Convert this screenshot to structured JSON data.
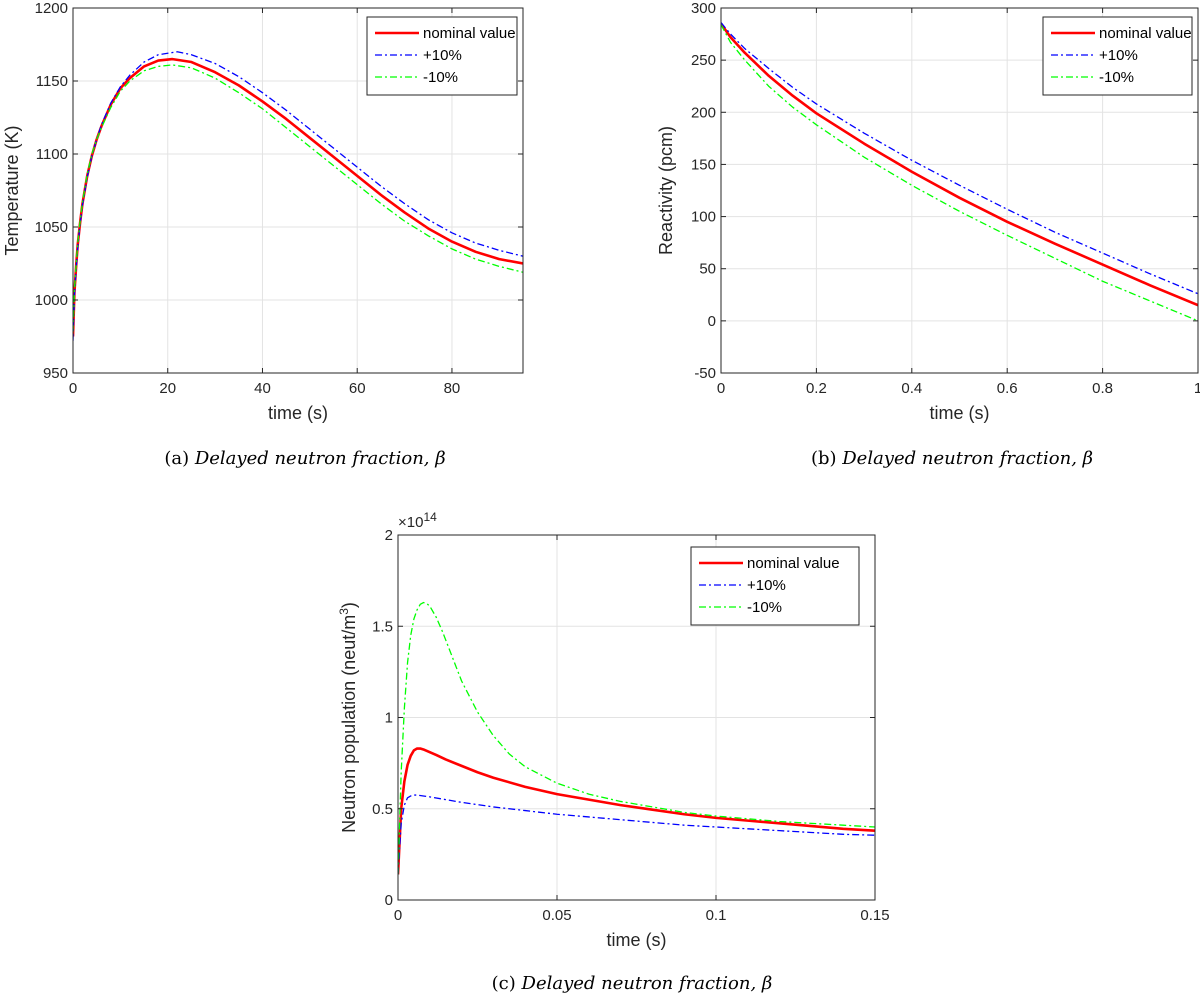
{
  "colors": {
    "nominal": "#ff0000",
    "plus10": "#0000ff",
    "minus10": "#00ff00",
    "axis": "#262626",
    "grid": "#e3e3e3"
  },
  "chart_data": [
    {
      "id": "a",
      "type": "line",
      "xlabel": "time (s)",
      "ylabel": "Temperature (K)",
      "xlim": [
        0,
        95
      ],
      "ylim": [
        950,
        1200
      ],
      "xticks": [
        0,
        20,
        40,
        60,
        80
      ],
      "xtick_labels": [
        "0",
        "20",
        "40",
        "60",
        "80"
      ],
      "yticks": [
        950,
        1000,
        1050,
        1100,
        1150,
        1200
      ],
      "ytick_labels": [
        "950",
        "1000",
        "1050",
        "1100",
        "1150",
        "1200"
      ],
      "grid": true,
      "legend_position": "top-right",
      "caption_label": "(a)",
      "caption_text": "Delayed neutron fraction, β",
      "series": [
        {
          "name": "nominal value",
          "style": "solid",
          "color_key": "nominal",
          "x": [
            0,
            0.3,
            0.7,
            1,
            1.5,
            2,
            3,
            4,
            5,
            6,
            8,
            10,
            12,
            15,
            18,
            21,
            25,
            30,
            35,
            40,
            45,
            50,
            55,
            60,
            65,
            70,
            75,
            80,
            85,
            90,
            95
          ],
          "y": [
            975,
            1005,
            1025,
            1038,
            1053,
            1066,
            1085,
            1099,
            1110,
            1119,
            1134,
            1145,
            1152,
            1160,
            1164,
            1165,
            1163,
            1156,
            1147,
            1136,
            1124,
            1111,
            1098,
            1085,
            1072,
            1060,
            1049,
            1040,
            1033,
            1028,
            1025
          ]
        },
        {
          "name": "+10%",
          "style": "dashdot",
          "color_key": "plus10",
          "x": [
            0,
            0.3,
            0.7,
            1,
            1.5,
            2,
            3,
            4,
            5,
            6,
            8,
            10,
            12,
            15,
            18,
            22,
            25,
            30,
            35,
            40,
            45,
            50,
            55,
            60,
            65,
            70,
            75,
            80,
            85,
            90,
            95
          ],
          "y": [
            972,
            1003,
            1023,
            1036,
            1052,
            1065,
            1084,
            1099,
            1110,
            1120,
            1135,
            1146,
            1154,
            1163,
            1168,
            1170,
            1168,
            1162,
            1153,
            1142,
            1130,
            1117,
            1104,
            1091,
            1078,
            1066,
            1055,
            1046,
            1039,
            1034,
            1030
          ]
        },
        {
          "name": "-10%",
          "style": "dashdot",
          "color_key": "minus10",
          "x": [
            0,
            0.3,
            0.7,
            1,
            1.5,
            2,
            3,
            4,
            5,
            6,
            8,
            10,
            12,
            15,
            18,
            21,
            25,
            30,
            35,
            40,
            45,
            50,
            55,
            60,
            65,
            70,
            75,
            80,
            85,
            90,
            95
          ],
          "y": [
            978,
            1007,
            1026,
            1039,
            1054,
            1067,
            1086,
            1100,
            1110,
            1118,
            1132,
            1143,
            1150,
            1157,
            1160,
            1161,
            1159,
            1152,
            1142,
            1131,
            1118,
            1105,
            1092,
            1079,
            1066,
            1054,
            1044,
            1035,
            1028,
            1023,
            1019
          ]
        }
      ]
    },
    {
      "id": "b",
      "type": "line",
      "xlabel": "time (s)",
      "ylabel": "Reactivity (pcm)",
      "xlim": [
        0,
        1
      ],
      "ylim": [
        -50,
        300
      ],
      "xticks": [
        0,
        0.2,
        0.4,
        0.6,
        0.8,
        1
      ],
      "xtick_labels": [
        "0",
        "0.2",
        "0.4",
        "0.6",
        "0.8",
        "1"
      ],
      "yticks": [
        -50,
        0,
        50,
        100,
        150,
        200,
        250,
        300
      ],
      "ytick_labels": [
        "-50",
        "0",
        "50",
        "100",
        "150",
        "200",
        "250",
        "300"
      ],
      "grid": true,
      "legend_position": "top-right",
      "caption_label": "(b)",
      "caption_text": "Delayed neutron fraction, β",
      "series": [
        {
          "name": "nominal value",
          "style": "solid",
          "color_key": "nominal",
          "x": [
            0,
            0.02,
            0.05,
            0.1,
            0.15,
            0.2,
            0.3,
            0.4,
            0.5,
            0.6,
            0.7,
            0.8,
            0.9,
            1.0
          ],
          "y": [
            285,
            272,
            257,
            235,
            216,
            199,
            170,
            143,
            118,
            95,
            74,
            54,
            34,
            15
          ]
        },
        {
          "name": "+10%",
          "style": "dashdot",
          "color_key": "plus10",
          "x": [
            0,
            0.02,
            0.05,
            0.1,
            0.15,
            0.2,
            0.3,
            0.4,
            0.5,
            0.6,
            0.7,
            0.8,
            0.9,
            1.0
          ],
          "y": [
            286,
            275,
            261,
            242,
            224,
            208,
            180,
            154,
            130,
            107,
            85,
            65,
            45,
            26
          ]
        },
        {
          "name": "-10%",
          "style": "dashdot",
          "color_key": "minus10",
          "x": [
            0,
            0.02,
            0.05,
            0.1,
            0.15,
            0.2,
            0.3,
            0.4,
            0.5,
            0.6,
            0.7,
            0.8,
            0.9,
            1.0
          ],
          "y": [
            284,
            267,
            250,
            225,
            205,
            188,
            157,
            130,
            105,
            82,
            60,
            38,
            19,
            0
          ]
        }
      ]
    },
    {
      "id": "c",
      "type": "line",
      "xlabel": "time (s)",
      "ylabel": "Neutron population (neut/m³)",
      "ylabel_main": "Neutron population (neut/m",
      "ylabel_sup": "3",
      "ylabel_end": ")",
      "exponent_base": "×10",
      "exponent_power": "14",
      "xlim": [
        0,
        0.15
      ],
      "ylim": [
        0,
        2
      ],
      "xticks": [
        0,
        0.05,
        0.1,
        0.15
      ],
      "xtick_labels": [
        "0",
        "0.05",
        "0.1",
        "0.15"
      ],
      "yticks": [
        0,
        0.5,
        1,
        1.5,
        2
      ],
      "ytick_labels": [
        "0",
        "0.5",
        "1",
        "1.5",
        "2"
      ],
      "grid": true,
      "legend_position": "top-right",
      "caption_label": "(c)",
      "caption_text": "Delayed neutron fraction, β",
      "series": [
        {
          "name": "nominal value",
          "style": "solid",
          "color_key": "nominal",
          "x": [
            0,
            0.001,
            0.002,
            0.003,
            0.004,
            0.005,
            0.006,
            0.007,
            0.008,
            0.01,
            0.012,
            0.015,
            0.02,
            0.025,
            0.03,
            0.04,
            0.05,
            0.06,
            0.07,
            0.08,
            0.09,
            0.1,
            0.11,
            0.12,
            0.13,
            0.14,
            0.15
          ],
          "y": [
            0.14,
            0.5,
            0.65,
            0.74,
            0.79,
            0.82,
            0.83,
            0.83,
            0.825,
            0.81,
            0.795,
            0.77,
            0.735,
            0.7,
            0.67,
            0.62,
            0.58,
            0.55,
            0.52,
            0.495,
            0.47,
            0.45,
            0.435,
            0.42,
            0.405,
            0.39,
            0.38
          ]
        },
        {
          "name": "+10%",
          "style": "dashdot",
          "color_key": "plus10",
          "x": [
            0,
            0.001,
            0.002,
            0.003,
            0.004,
            0.005,
            0.006,
            0.008,
            0.01,
            0.015,
            0.02,
            0.03,
            0.04,
            0.05,
            0.06,
            0.07,
            0.08,
            0.09,
            0.1,
            0.11,
            0.12,
            0.13,
            0.14,
            0.15
          ],
          "y": [
            0.14,
            0.42,
            0.52,
            0.56,
            0.57,
            0.575,
            0.575,
            0.57,
            0.565,
            0.55,
            0.535,
            0.51,
            0.49,
            0.47,
            0.455,
            0.44,
            0.425,
            0.41,
            0.4,
            0.39,
            0.38,
            0.37,
            0.36,
            0.355
          ]
        },
        {
          "name": "-10%",
          "style": "dashdot",
          "color_key": "minus10",
          "x": [
            0,
            0.001,
            0.002,
            0.003,
            0.004,
            0.005,
            0.006,
            0.007,
            0.008,
            0.009,
            0.01,
            0.012,
            0.014,
            0.016,
            0.018,
            0.02,
            0.025,
            0.03,
            0.035,
            0.04,
            0.05,
            0.06,
            0.07,
            0.08,
            0.09,
            0.1,
            0.11,
            0.12,
            0.13,
            0.14,
            0.15
          ],
          "y": [
            0.14,
            0.7,
            1.05,
            1.3,
            1.45,
            1.54,
            1.59,
            1.62,
            1.63,
            1.625,
            1.61,
            1.55,
            1.47,
            1.38,
            1.29,
            1.2,
            1.03,
            0.9,
            0.8,
            0.73,
            0.64,
            0.58,
            0.54,
            0.51,
            0.48,
            0.46,
            0.445,
            0.43,
            0.42,
            0.41,
            0.4
          ]
        }
      ]
    }
  ]
}
